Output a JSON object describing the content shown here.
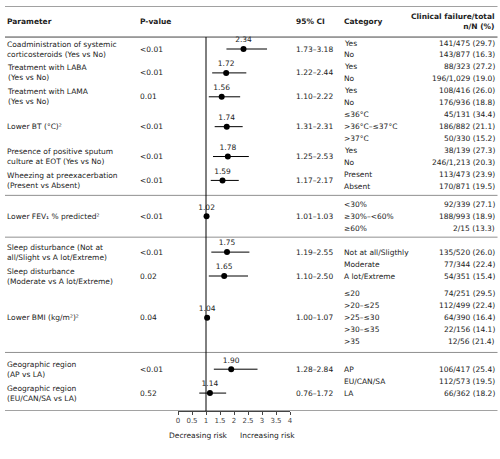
{
  "chart_data": {
    "type": "forest",
    "headers": {
      "parameter": "Parameter",
      "pvalue": "P-value",
      "ci": "95% CI",
      "category": "Category",
      "cf": [
        "Clinical failure/total",
        "n/N (%)"
      ]
    },
    "rows": [
      {
        "param_lines": [
          "Coadministration of systemic",
          "corticosteroids (Yes vs No)"
        ],
        "pvalue": "<0.01",
        "or": 2.34,
        "or_label": "2.34",
        "ci_low": 1.73,
        "ci_high": 3.18,
        "ci_label": "1.73–3.18",
        "categories": [
          "Yes",
          "No"
        ],
        "cf": [
          "141/475 (29.7)",
          "143/877 (16.3)"
        ]
      },
      {
        "param_lines": [
          "Treatment with LABA",
          "(Yes vs No)"
        ],
        "pvalue": "<0.01",
        "or": 1.72,
        "or_label": "1.72",
        "ci_low": 1.22,
        "ci_high": 2.44,
        "ci_label": "1.22–2.44",
        "categories": [
          "Yes",
          "No"
        ],
        "cf": [
          "88/323 (27.2)",
          "196/1,029 (19.0)"
        ]
      },
      {
        "param_lines": [
          "Treatment with LAMA",
          "(Yes vs No)"
        ],
        "pvalue": "0.01",
        "or": 1.56,
        "or_label": "1.56",
        "ci_low": 1.1,
        "ci_high": 2.22,
        "ci_label": "1.10–2.22",
        "categories": [
          "Yes",
          "No"
        ],
        "cf": [
          "108/416 (26.0)",
          "176/936 (18.8)"
        ]
      },
      {
        "param_lines": [
          "Lower BT (°C)²"
        ],
        "pvalue": "<0.01",
        "or": 1.74,
        "or_label": "1.74",
        "ci_low": 1.31,
        "ci_high": 2.31,
        "ci_label": "1.31–2.31",
        "categories": [
          "≤36°C",
          ">36°C–≤37°C",
          ">37°C"
        ],
        "cf": [
          "45/131 (34.4)",
          "186/882 (21.1)",
          "50/330 (15.2)"
        ]
      },
      {
        "param_lines": [
          "Presence of positive sputum",
          "culture at EOT (Yes vs No)"
        ],
        "pvalue": "<0.01",
        "or": 1.78,
        "or_label": "1.78",
        "ci_low": 1.25,
        "ci_high": 2.53,
        "ci_label": "1.25–2.53",
        "categories": [
          "Yes",
          "No"
        ],
        "cf": [
          "38/139 (27.3)",
          "246/1,213 (20.3)"
        ]
      },
      {
        "param_lines": [
          "Wheezing at preexacerbation",
          "(Present vs Absent)"
        ],
        "pvalue": "<0.01",
        "or": 1.59,
        "or_label": "1.59",
        "ci_low": 1.17,
        "ci_high": 2.17,
        "ci_label": "1.17–2.17",
        "categories": [
          "Present",
          "Absent"
        ],
        "cf": [
          "113/473 (23.9)",
          "170/871 (19.5)"
        ]
      },
      {
        "param_lines": [
          "Lower FEV₁ % predicted²"
        ],
        "pvalue": "<0.01",
        "or": 1.02,
        "or_label": "1.02",
        "ci_low": 1.01,
        "ci_high": 1.03,
        "ci_label": "1.01–1.03",
        "categories": [
          "<30%",
          "≥30%–<60%",
          "≥60%"
        ],
        "cf": [
          "92/339 (27.1)",
          "188/993 (18.9)",
          "2/15 (13.3)"
        ]
      },
      {
        "param_lines": [
          "Sleep disturbance (Not at",
          "all/Slight vs A lot/Extreme)"
        ],
        "pvalue": "<0.01",
        "or": 1.75,
        "or_label": "1.75",
        "ci_low": 1.19,
        "ci_high": 2.55,
        "ci_label": "1.19–2.55",
        "categories": [
          "Not at all/Sligthly",
          "Moderate",
          "A lot/Extreme"
        ],
        "cf": [
          "135/520 (26.0)",
          "77/344 (22.4)",
          "54/351 (15.4)"
        ],
        "second_row": {
          "param_lines": [
            "Sleep disturbance",
            "(Moderate vs A lot/Extreme)"
          ],
          "pvalue": "0.02",
          "or": 1.65,
          "or_label": "1.65",
          "ci_low": 1.1,
          "ci_high": 2.5,
          "ci_label": "1.10–2.50"
        }
      },
      {
        "param_lines": [
          "Lower BMI (kg/m²)²"
        ],
        "pvalue": "0.04",
        "or": 1.04,
        "or_label": "1.04",
        "ci_low": 1.0,
        "ci_high": 1.07,
        "ci_label": "1.00–1.07",
        "categories": [
          "≤20",
          ">20–≤25",
          ">25–≤30",
          ">30–≤35",
          ">35"
        ],
        "cf": [
          "74/251 (29.5)",
          "112/499 (22.4)",
          "64/390 (16.4)",
          "22/156 (14.1)",
          "12/56 (21.4)"
        ]
      },
      {
        "param_lines": [
          "Geographic region",
          "(AP vs LA)"
        ],
        "pvalue": "<0.01",
        "or": 1.9,
        "or_label": "1.90",
        "ci_low": 1.28,
        "ci_high": 2.84,
        "ci_label": "1.28–2.84",
        "categories": [
          "AP",
          "EU/CAN/SA",
          "LA"
        ],
        "cf": [
          "106/417 (25.4)",
          "112/573 (19.5)",
          "66/362 (18.2)"
        ],
        "second_row": {
          "param_lines": [
            "Geographic region",
            "(EU/CAN/SA vs LA)"
          ],
          "pvalue": "0.52",
          "or": 1.14,
          "or_label": "1.14",
          "ci_low": 0.76,
          "ci_high": 1.72,
          "ci_label": "0.76–1.72"
        }
      }
    ],
    "xlim": [
      0,
      4
    ],
    "xticks": [
      0,
      0.5,
      1,
      1.5,
      2,
      2.5,
      3,
      3.5,
      4
    ],
    "xlabel_left": "Decreasing risk",
    "xlabel_right": "Increasing risk",
    "reference_line": 1,
    "color": "black",
    "grid": false,
    "data_labels": true
  }
}
